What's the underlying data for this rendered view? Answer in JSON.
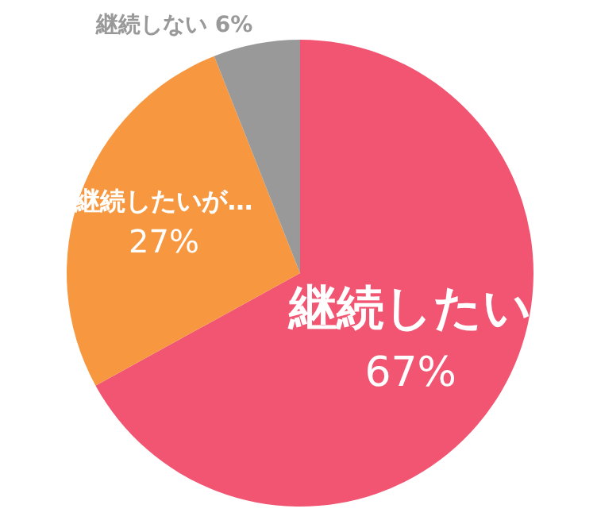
{
  "chart_data": {
    "type": "pie",
    "categories": [
      "継続したい",
      "継続したいが…",
      "継続しない"
    ],
    "values": [
      67,
      27,
      6
    ],
    "value_labels": [
      "67%",
      "27%",
      "6%"
    ],
    "colors": [
      "#f25572",
      "#f79841",
      "#999999"
    ]
  }
}
